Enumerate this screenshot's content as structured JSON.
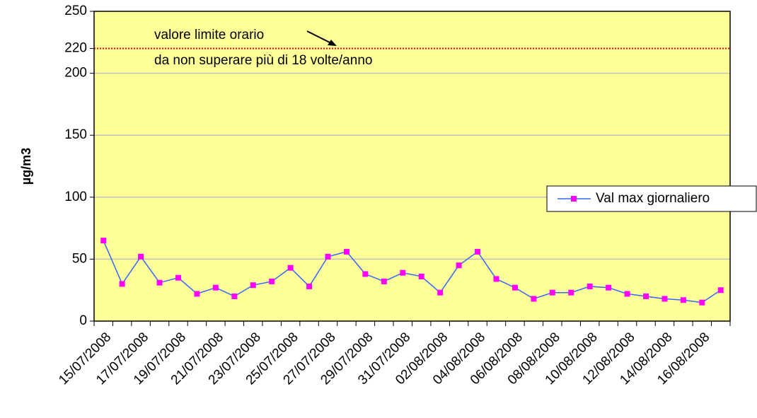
{
  "chart_data": {
    "type": "line",
    "y_label": "µg/m3",
    "annotations": [
      "valore limite orario",
      "da non superare più di 18 volte/anno"
    ],
    "categories": [
      "15/07/2008",
      null,
      "17/07/2008",
      null,
      "19/07/2008",
      null,
      "21/07/2008",
      null,
      "23/07/2008",
      null,
      "25/07/2008",
      null,
      "27/07/2008",
      null,
      "29/07/2008",
      null,
      "31/07/2008",
      null,
      "02/08/2008",
      null,
      "04/08/2008",
      null,
      "06/08/2008",
      null,
      "08/08/2008",
      null,
      "10/08/2008",
      null,
      "12/08/2008",
      null,
      "14/08/2008",
      null,
      "16/08/2008",
      null
    ],
    "series": [
      {
        "name": "Val max giornaliero",
        "color": "#3366ff",
        "marker_color": "#ff00ff",
        "values": [
          65,
          30,
          52,
          31,
          35,
          22,
          27,
          20,
          29,
          32,
          43,
          28,
          52,
          56,
          38,
          32,
          39,
          36,
          23,
          45,
          56,
          34,
          27,
          18,
          23,
          23,
          28,
          27,
          22,
          20,
          18,
          17,
          15,
          25
        ]
      }
    ],
    "ylim": [
      0,
      250
    ],
    "yticks": [
      0,
      50,
      100,
      150,
      200,
      220,
      250
    ],
    "limit": 220,
    "limit_color": "#ff0000",
    "grid": true,
    "plot_background": "#ffff99",
    "legend": "right"
  }
}
